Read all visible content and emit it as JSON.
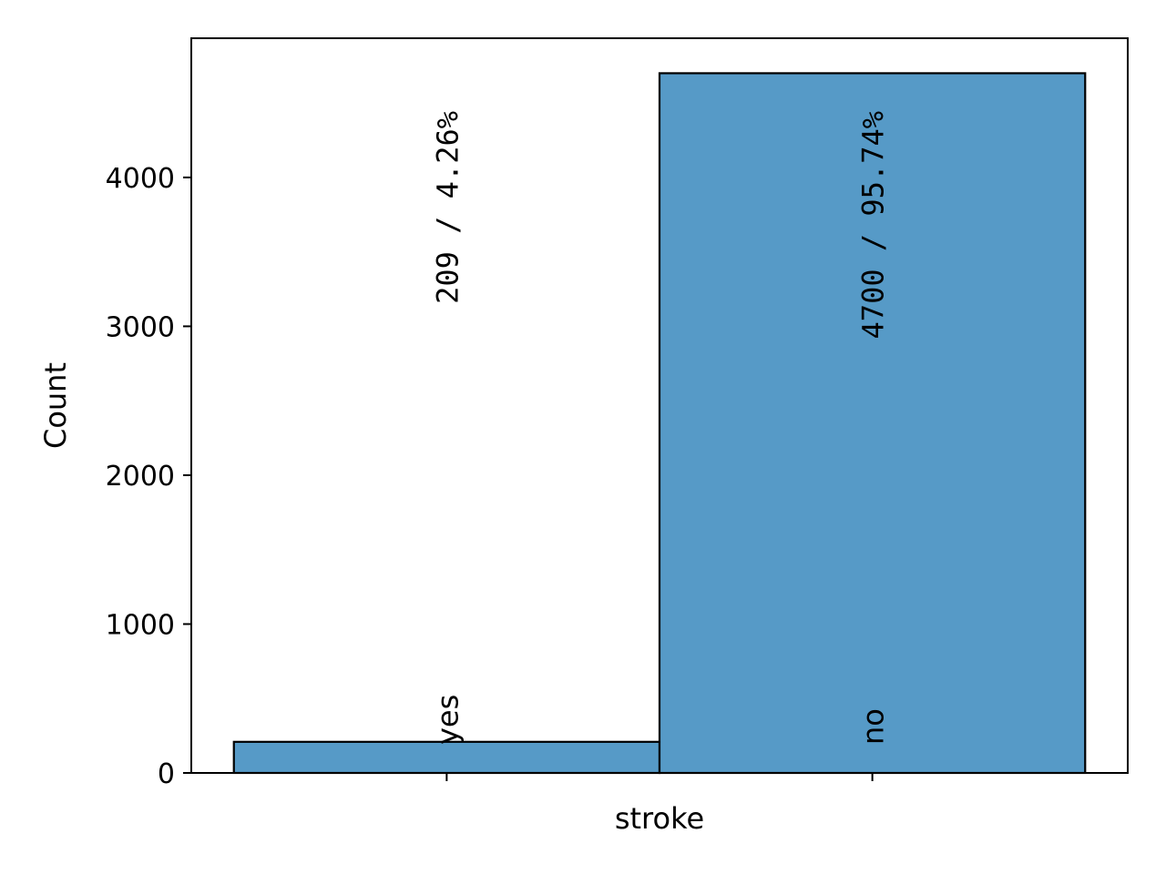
{
  "chart_data": {
    "type": "bar",
    "xlabel": "stroke",
    "ylabel": "Count",
    "categories": [
      "yes",
      "no"
    ],
    "values": [
      209,
      4700
    ],
    "data_labels": [
      "209  /  4.26%",
      "4700  /  95.74%"
    ],
    "ylim": [
      0,
      4935
    ],
    "yticks": [
      0,
      1000,
      2000,
      3000,
      4000
    ],
    "grid": false,
    "bar_color": "#569ac7",
    "edge_color": "#000000"
  }
}
